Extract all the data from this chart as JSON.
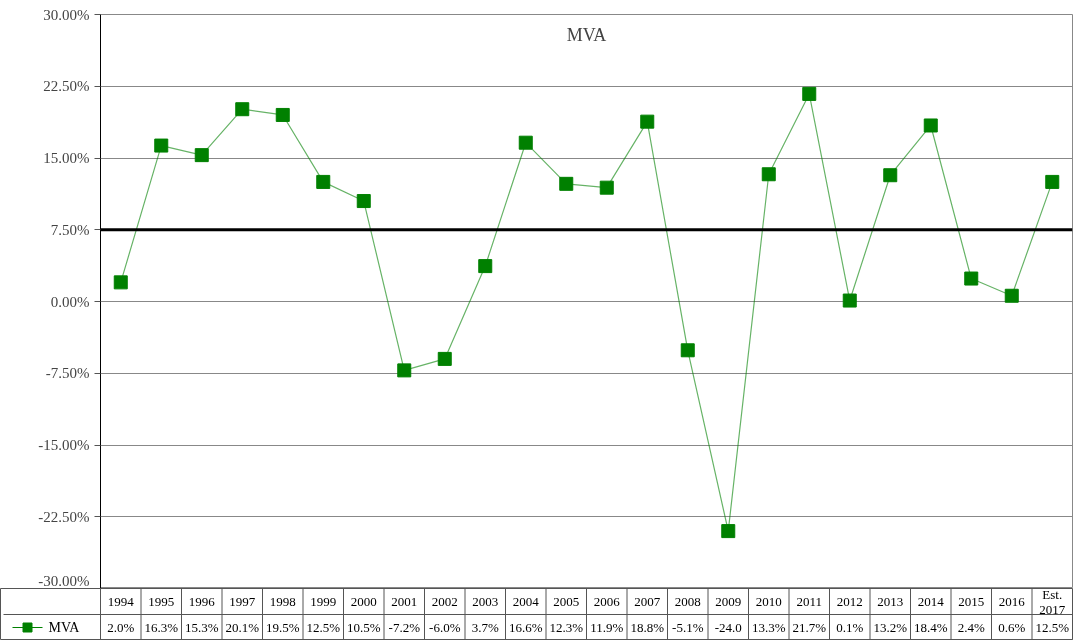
{
  "chart_data": {
    "type": "line",
    "title": "MVA",
    "categories": [
      "1994",
      "1995",
      "1996",
      "1997",
      "1998",
      "1999",
      "2000",
      "2001",
      "2002",
      "2003",
      "2004",
      "2005",
      "2006",
      "2007",
      "2008",
      "2009",
      "2010",
      "2011",
      "2012",
      "2013",
      "2014",
      "2015",
      "2016",
      "Est. 2017"
    ],
    "series": [
      {
        "name": "MVA",
        "color": "#008000",
        "values": [
          2.0,
          16.3,
          15.3,
          20.1,
          19.5,
          12.5,
          10.5,
          -7.2,
          -6.0,
          3.7,
          16.6,
          12.3,
          11.9,
          18.8,
          -5.1,
          -24.0,
          13.3,
          21.7,
          0.1,
          13.2,
          18.4,
          2.4,
          0.6,
          12.5
        ],
        "value_labels": [
          "2.0%",
          "16.3%",
          "15.3%",
          "20.1%",
          "19.5%",
          "12.5%",
          "10.5%",
          "-7.2%",
          "-6.0%",
          "3.7%",
          "16.6%",
          "12.3%",
          "11.9%",
          "18.8%",
          "-5.1%",
          "-24.0",
          "13.3%",
          "21.7%",
          "0.1%",
          "13.2%",
          "18.4%",
          "2.4%",
          "0.6%",
          "12.5%"
        ]
      }
    ],
    "ylim": [
      -30,
      30
    ],
    "yticks": [
      {
        "value": -30,
        "label": "-30.00%"
      },
      {
        "value": -22.5,
        "label": "-22.50%"
      },
      {
        "value": -15,
        "label": "-15.00%"
      },
      {
        "value": -7.5,
        "label": "-7.50%"
      },
      {
        "value": 0,
        "label": "0.00%"
      },
      {
        "value": 7.5,
        "label": "7.50%"
      },
      {
        "value": 15,
        "label": "15.00%"
      },
      {
        "value": 22.5,
        "label": "22.50%"
      },
      {
        "value": 30,
        "label": "30.00%"
      }
    ],
    "ref_lines": [
      {
        "axis": "y",
        "value": 7.5,
        "color": "#000000"
      }
    ],
    "grid": "y",
    "legend": "bottom left",
    "marker": "square",
    "line_style": "solid"
  }
}
